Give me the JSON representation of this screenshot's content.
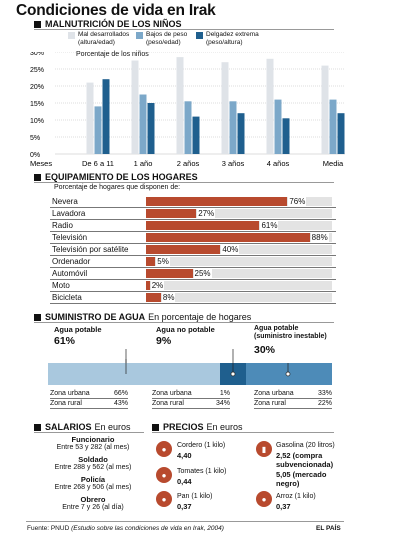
{
  "title": "Condiciones de vida en Irak",
  "malnutrition": {
    "heading": "MALNUTRICIÓN DE LOS NIÑOS",
    "legend": [
      {
        "label": "Mal desarrollados (altura/edad)",
        "color": "#dfe3e8"
      },
      {
        "label": "Bajos de peso (peso/edad)",
        "color": "#7ca8c9"
      },
      {
        "label": "Delgadez extrema (peso/altura)",
        "color": "#1f5f8e"
      }
    ],
    "axis_title": "Porcentaje de los niños",
    "x_prefix": "Meses",
    "tick_labels": [
      "30%",
      "25%",
      "20%",
      "15%",
      "10%",
      "5%",
      "0%"
    ]
  },
  "chart_data": [
    {
      "type": "bar",
      "title": "MALNUTRICIÓN DE LOS NIÑOS",
      "ylabel": "Porcentaje de los niños",
      "xlabel": "Meses",
      "ylim": [
        0,
        30
      ],
      "categories": [
        "De 6 a 11",
        "1 año",
        "2 años",
        "3 años",
        "4 años",
        "Media"
      ],
      "series": [
        {
          "name": "Mal desarrollados (altura/edad)",
          "color": "#dfe3e8",
          "values": [
            21,
            27.5,
            28.5,
            27,
            28,
            26
          ]
        },
        {
          "name": "Bajos de peso (peso/edad)",
          "color": "#7ca8c9",
          "values": [
            14,
            17.5,
            15.5,
            15.5,
            16,
            16
          ]
        },
        {
          "name": "Delgadez extrema (peso/altura)",
          "color": "#1f5f8e",
          "values": [
            22,
            15,
            11,
            12,
            10.5,
            12
          ]
        }
      ]
    },
    {
      "type": "bar",
      "title": "EQUIPAMIENTO DE LOS HOGARES",
      "subtitle": "Porcentaje de hogares que disponen de:",
      "ylim": [
        0,
        100
      ],
      "categories": [
        "Nevera",
        "Lavadora",
        "Radio",
        "Televisión",
        "Televisión por satélite",
        "Ordenador",
        "Automóvil",
        "Moto",
        "Bicicleta"
      ],
      "values": [
        76,
        27,
        61,
        88,
        40,
        5,
        25,
        2,
        8
      ],
      "labels": [
        "76%",
        "27%",
        "61%",
        "88%",
        "40%",
        "5%",
        "25%",
        "2%",
        "8%"
      ]
    }
  ],
  "equipment": {
    "heading": "EQUIPAMIENTO DE LOS HOGARES",
    "subtitle": "Porcentaje de hogares que disponen de:"
  },
  "water": {
    "heading": "SUMINISTRO DE AGUA",
    "subheading": "En porcentaje de hogares",
    "groups": [
      {
        "label": "Agua potable",
        "pct": "61%",
        "color": "#a9c8de",
        "urbana_lbl": "Zona urbana",
        "urbana": "66%",
        "rural_lbl": "Zona rural",
        "rural": "43%"
      },
      {
        "label": "Agua no potable",
        "pct": "9%",
        "color": "#1f5f8e",
        "urbana_lbl": "Zona urbana",
        "urbana": "1%",
        "rural_lbl": "Zona rural",
        "rural": "34%"
      },
      {
        "label": "Agua potable (suministro inestable)",
        "pct": "30%",
        "color": "#4d8bb8",
        "urbana_lbl": "Zona urbana",
        "urbana": "33%",
        "rural_lbl": "Zona rural",
        "rural": "22%"
      }
    ]
  },
  "salaries": {
    "heading": "SALARIOS",
    "sub": "En euros",
    "items": [
      {
        "name": "Funcionario",
        "range": "Entre 53 y 282 (al mes)"
      },
      {
        "name": "Soldado",
        "range": "Entre 288 y 562 (al mes)"
      },
      {
        "name": "Policía",
        "range": "Entre 268 y 506 (al mes)"
      },
      {
        "name": "Obrero",
        "range": "Entre 7 y 26 (al día)"
      }
    ]
  },
  "prices": {
    "heading": "PRECIOS",
    "sub": "En euros",
    "left": [
      {
        "label": "Cordero (1 kilo)",
        "value": "4,40"
      },
      {
        "label": "Tomates (1 kilo)",
        "value": "0,44"
      },
      {
        "label": "Pan (1 kilo)",
        "value": "0,37"
      }
    ],
    "right": [
      {
        "label": "Gasolina (20 litros)",
        "value": "2,52 (compra subvencionada)"
      },
      {
        "label": "",
        "value": "5,05 (mercado negro)"
      },
      {
        "label": "Arroz (1 kilo)",
        "value": "0,37"
      }
    ]
  },
  "footer": {
    "source_prefix": "Fuente: PNUD",
    "source_detail": "(Estudio sobre las condiciones de vida en Irak, 2004)",
    "brand": "EL PAÍS"
  }
}
